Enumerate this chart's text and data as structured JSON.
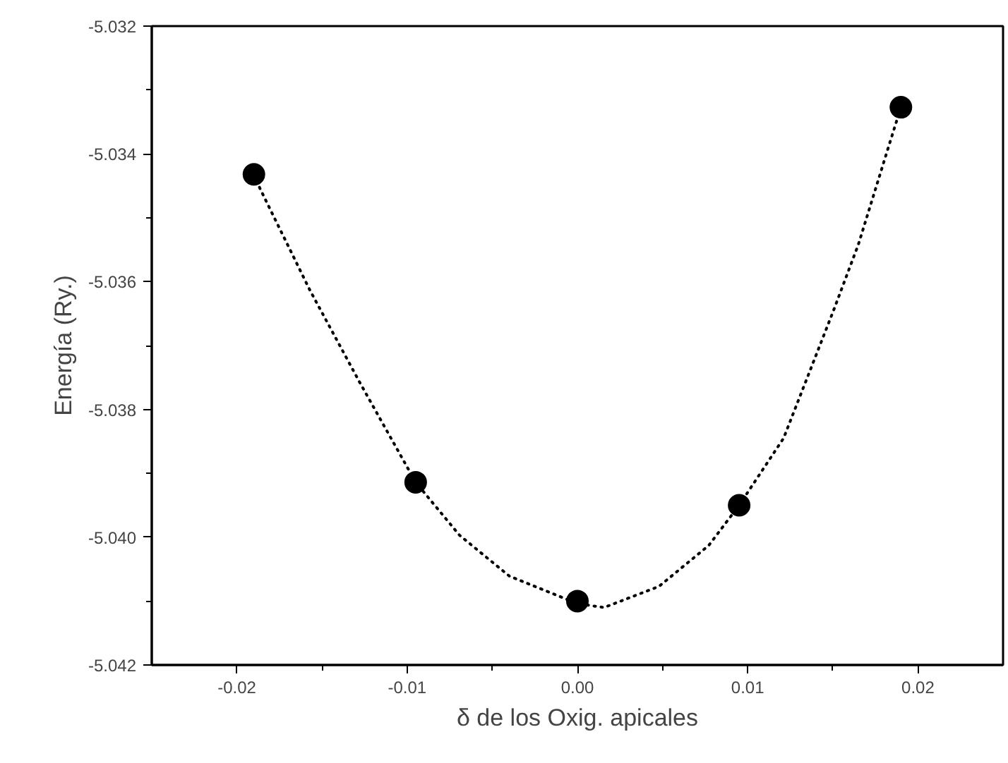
{
  "chart_data": {
    "type": "scatter",
    "xlabel": "δ de los Oxig. apicales",
    "ylabel": "Energía (Ry.)",
    "xlim": [
      -0.025,
      0.025
    ],
    "xticks": [
      -0.02,
      -0.01,
      {
        "value": 0,
        "label": "0.00"
      },
      0.01,
      0.02
    ],
    "ylim": [
      -5.042,
      -5.032
    ],
    "yticks": [
      -5.042,
      {
        "value": -5.04,
        "label": "-5.040"
      },
      -5.038,
      -5.036,
      -5.034,
      -5.032
    ],
    "grid": false,
    "series": [
      {
        "type": "line",
        "color": "#000000",
        "line_style": "dotted",
        "marker": "none",
        "x": [
          -0.019,
          -0.01863,
          -0.0157,
          -0.01278,
          -0.0095,
          -0.00692,
          -0.00399,
          0.0,
          0.00157,
          0.00479,
          0.00771,
          0.0095,
          0.01211,
          0.01503,
          0.0165,
          0.01825,
          0.019
        ],
        "values": [
          -5.03432,
          -5.03455,
          -5.03614,
          -5.03758,
          -5.03914,
          -5.03997,
          -5.04061,
          -5.04104,
          -5.0411,
          -5.04077,
          -5.04013,
          -5.0395,
          -5.03845,
          -5.03646,
          -5.03542,
          -5.03391,
          -5.03327
        ]
      },
      {
        "color": "#000000",
        "marker": "circle",
        "x": [
          -0.019,
          -0.0095,
          0.0,
          0.0095,
          0.019
        ],
        "values": [
          -5.03432,
          -5.03914,
          -5.041,
          -5.0395,
          -5.03327
        ]
      }
    ]
  }
}
